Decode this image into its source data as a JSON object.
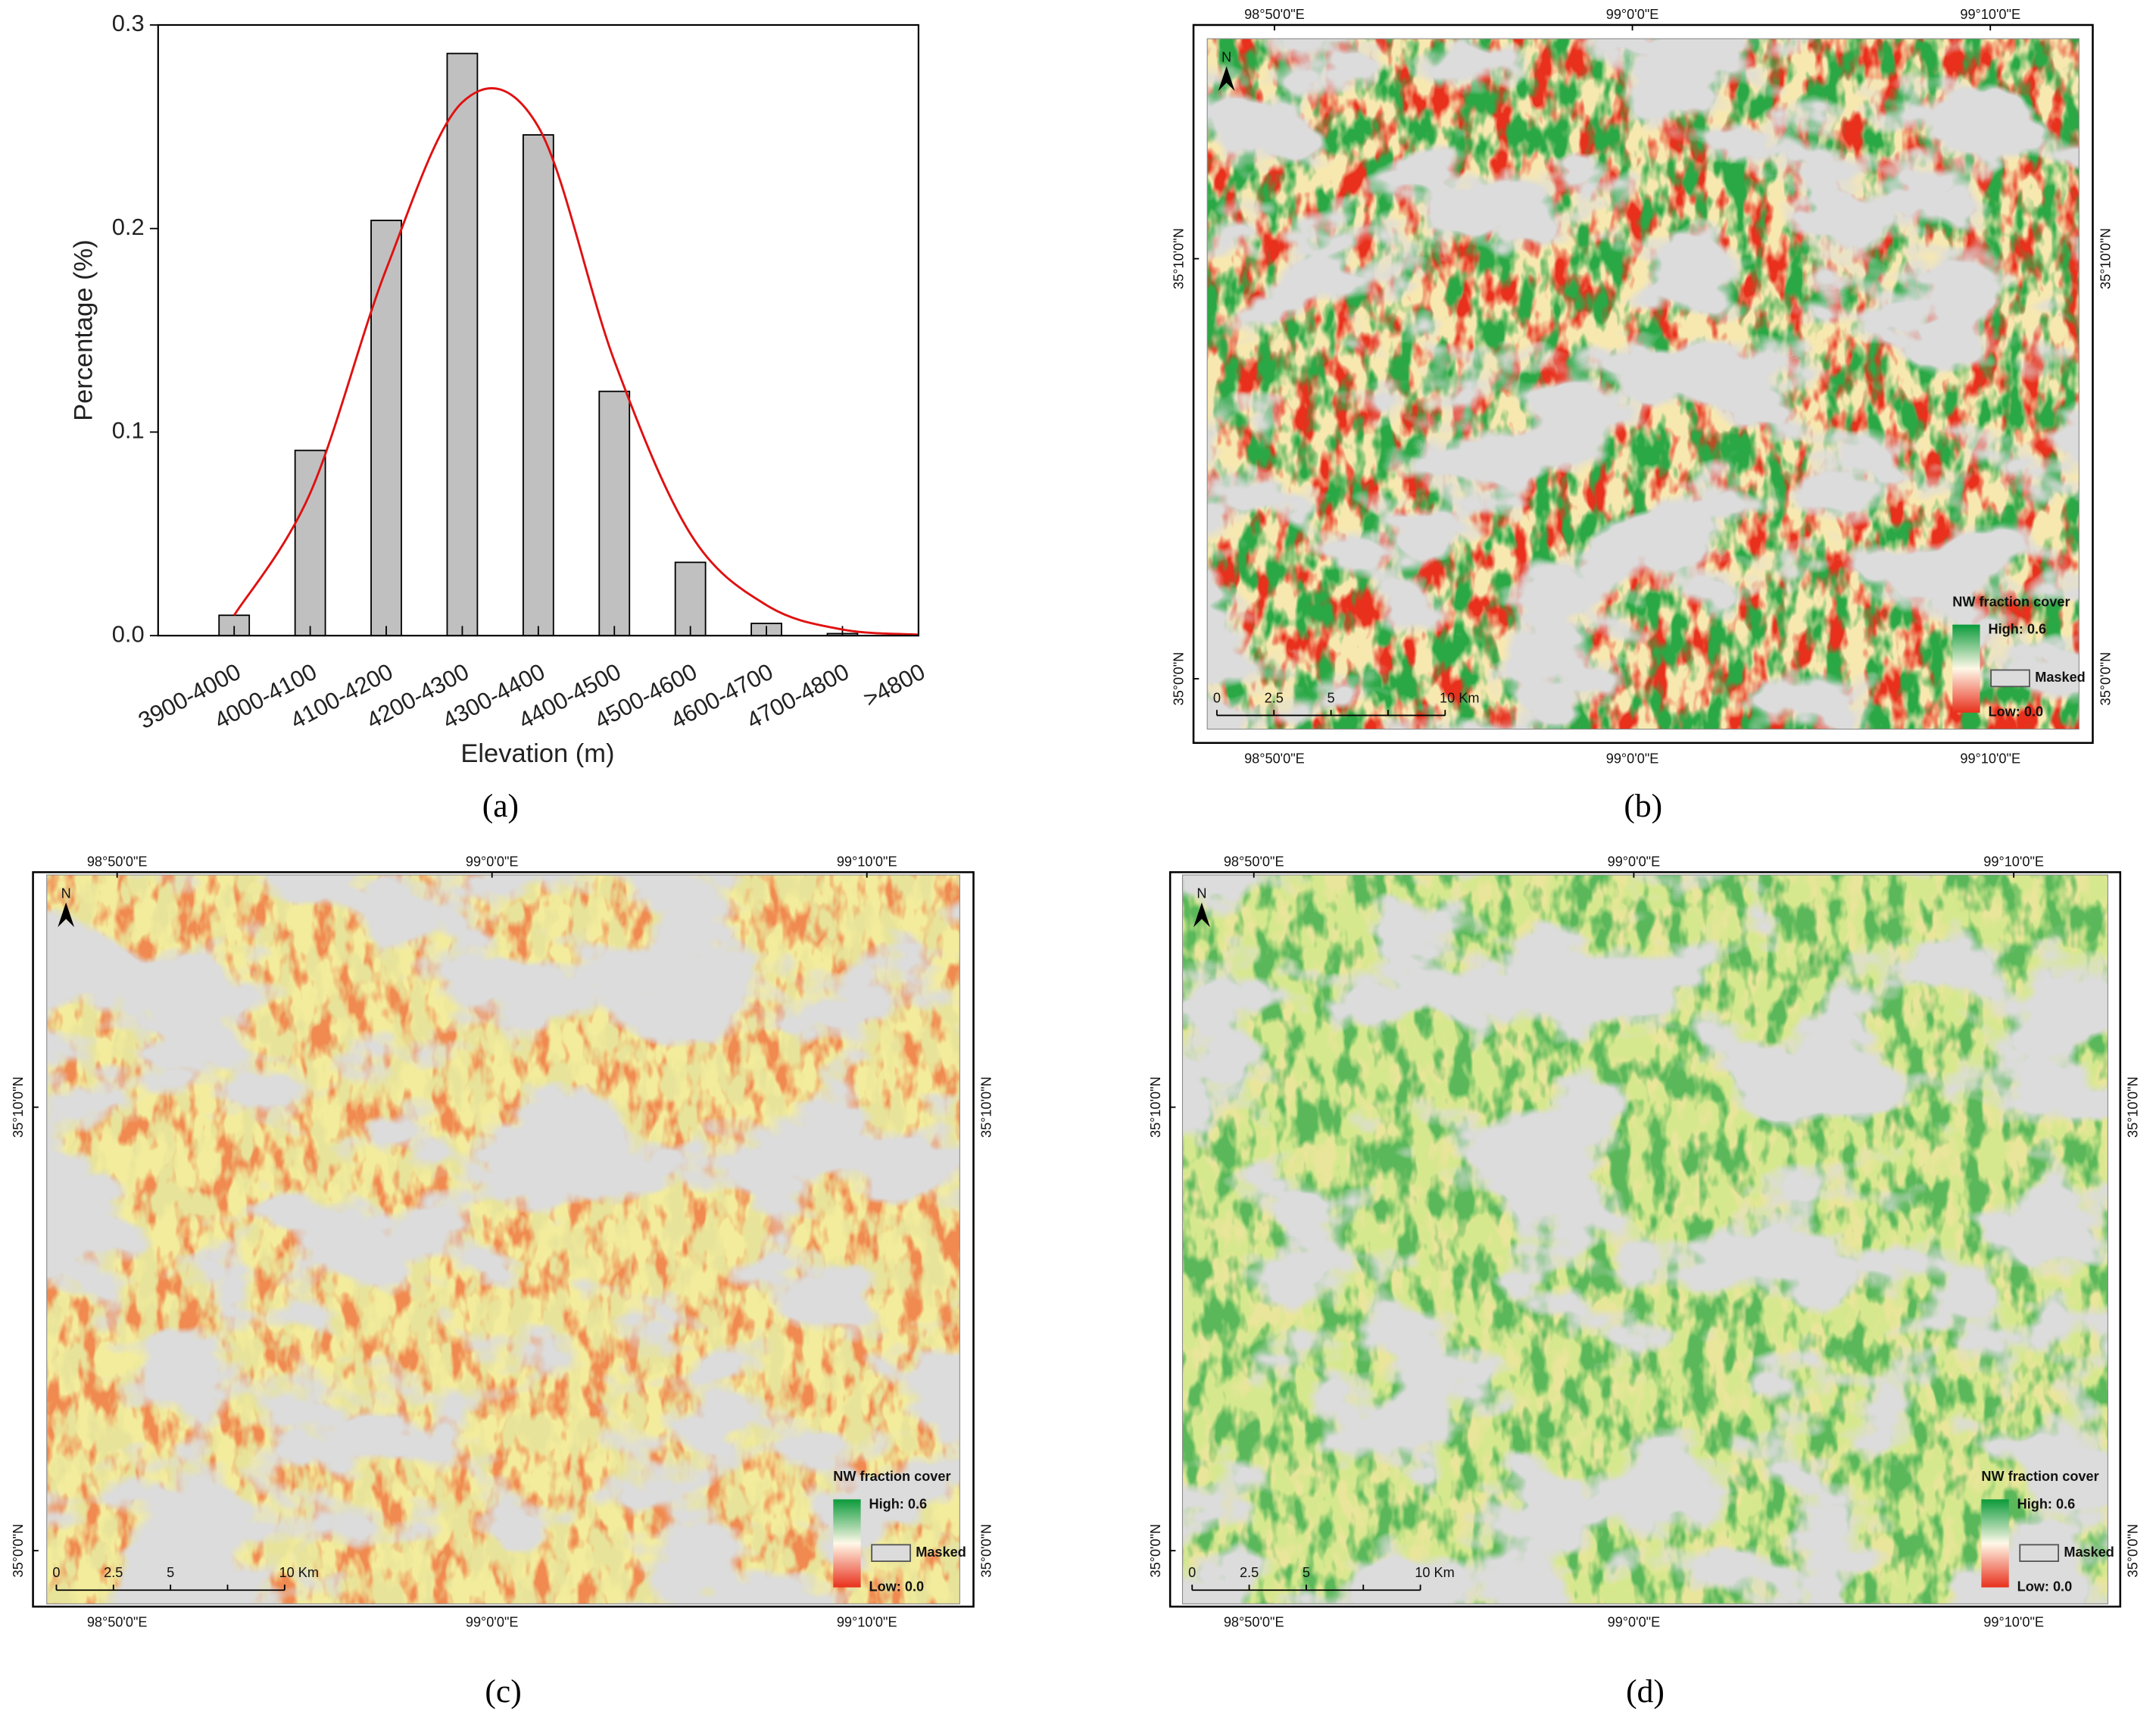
{
  "chart_data": [
    {
      "type": "bar",
      "xlabel": "Elevation (m)",
      "ylabel": "Percentage (%)",
      "caption": "(a)",
      "categories": [
        "3900-4000",
        "4000-4100",
        "4100-4200",
        "4200-4300",
        "4300-4400",
        "4400-4500",
        "4500-4600",
        "4600-4700",
        "4700-4800",
        ">4800"
      ],
      "values": [
        0.01,
        0.091,
        0.204,
        0.286,
        0.246,
        0.12,
        0.036,
        0.006,
        0.001,
        0
      ],
      "color": "#c0c0c0",
      "fit": {
        "color": "#e01010",
        "values": [
          0.01,
          0.07,
          0.18,
          0.262,
          0.25,
          0.135,
          0.05,
          0.015,
          0.003,
          0.0005
        ]
      },
      "ylim": [
        0,
        0.3
      ],
      "yticks": [
        {
          "value": 0,
          "label": "0.0"
        },
        0.1,
        0.2,
        0.3
      ]
    },
    {
      "type": "map",
      "caption": "(b)",
      "palette": [
        "#e8301c",
        "#f7e8b0",
        "#2aa845"
      ],
      "xlim": [
        98.802,
        99.208
      ],
      "ylim": [
        34.98,
        35.254
      ],
      "xticks": [
        {
          "value": 98.8333,
          "label": "98°50'0\"E"
        },
        {
          "value": 99,
          "label": "99°0'0\"E"
        },
        {
          "value": 99.1667,
          "label": "99°10'0\"E"
        }
      ],
      "yticks": [
        {
          "value": 35.1667,
          "label": "35°10'0\"N"
        },
        {
          "value": 35,
          "label": "35°0'0\"N"
        }
      ],
      "legend_title": "NW fraction cover",
      "legend_high": "High: 0.6",
      "legend_low": "Low: 0.0",
      "legend_masked": "Masked",
      "scalebar": [
        "0",
        "2.5",
        "5",
        "10 Km"
      ],
      "north": "N"
    },
    {
      "type": "map",
      "caption": "(c)",
      "palette": [
        "#f08a50",
        "#f3ec9c",
        "#e7e39a"
      ],
      "xlim": [
        98.802,
        99.208
      ],
      "ylim": [
        34.98,
        35.254
      ],
      "xticks": [
        {
          "value": 98.8333,
          "label": "98°50'0\"E"
        },
        {
          "value": 99,
          "label": "99°0'0\"E"
        },
        {
          "value": 99.1667,
          "label": "99°10'0\"E"
        }
      ],
      "yticks": [
        {
          "value": 35.1667,
          "label": "35°10'0\"N"
        },
        {
          "value": 35,
          "label": "35°0'0\"N"
        }
      ],
      "legend_title": "NW fraction cover",
      "legend_high": "High: 0.6",
      "legend_low": "Low: 0.0",
      "legend_masked": "Masked",
      "scalebar": [
        "0",
        "2.5",
        "5",
        "10 Km"
      ],
      "north": "N"
    },
    {
      "type": "map",
      "caption": "(d)",
      "palette": [
        "#e9e59a",
        "#d6e88e",
        "#5ab85a"
      ],
      "xlim": [
        98.802,
        99.208
      ],
      "ylim": [
        34.98,
        35.254
      ],
      "xticks": [
        {
          "value": 98.8333,
          "label": "98°50'0\"E"
        },
        {
          "value": 99,
          "label": "99°0'0\"E"
        },
        {
          "value": 99.1667,
          "label": "99°10'0\"E"
        }
      ],
      "yticks": [
        {
          "value": 35.1667,
          "label": "35°10'0\"N"
        },
        {
          "value": 35,
          "label": "35°0'0\"N"
        }
      ],
      "legend_title": "NW fraction cover",
      "legend_high": "High: 0.6",
      "legend_low": "Low: 0.0",
      "legend_masked": "Masked",
      "scalebar": [
        "0",
        "2.5",
        "5",
        "10 Km"
      ],
      "north": "N"
    }
  ]
}
